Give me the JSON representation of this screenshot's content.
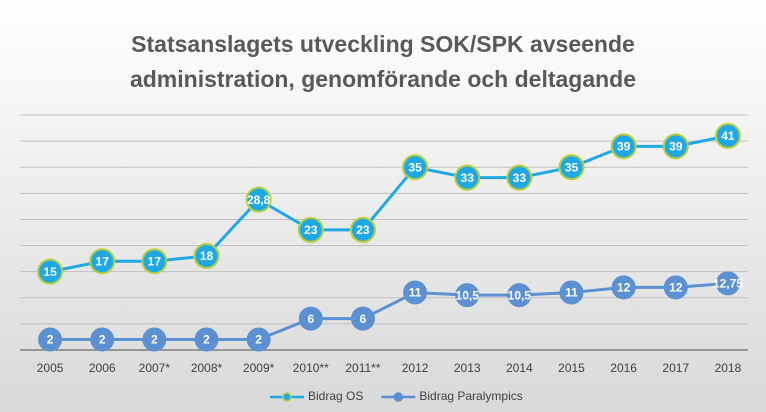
{
  "chart_data": {
    "type": "line",
    "title": "Statsanslagets utveckling SOK/SPK avseende",
    "subtitle": "administration, genomförande och deltagande",
    "categories": [
      "2005",
      "2006",
      "2007*",
      "2008*",
      "2009*",
      "2010**",
      "2011**",
      "2012",
      "2013",
      "2014",
      "2015",
      "2016",
      "2017",
      "2018"
    ],
    "series": [
      {
        "name": "Bidrag OS",
        "color": "#1fa8e8",
        "values": [
          15,
          17,
          17,
          18,
          28.8,
          23,
          23,
          35,
          33,
          33,
          35,
          39,
          39,
          41
        ],
        "value_labels": [
          "15",
          "17",
          "17",
          "18",
          "28,8",
          "23",
          "23",
          "35",
          "33",
          "33",
          "35",
          "39",
          "39",
          "41"
        ]
      },
      {
        "name": "Bidrag Paralympics",
        "color": "#5b90d2",
        "values": [
          2,
          2,
          2,
          2,
          2,
          6,
          6,
          11,
          10.5,
          10.5,
          11,
          12,
          12,
          12.75
        ],
        "value_labels": [
          "2",
          "2",
          "2",
          "2",
          "2",
          "6",
          "6",
          "11",
          "10,5",
          "10,5",
          "11",
          "12",
          "12",
          "12,75"
        ]
      }
    ],
    "ylim": [
      0,
      45
    ],
    "yticks": [
      0,
      5,
      10,
      15,
      20,
      25,
      30,
      35,
      40,
      45
    ],
    "grid": true,
    "legend": "bottom"
  }
}
